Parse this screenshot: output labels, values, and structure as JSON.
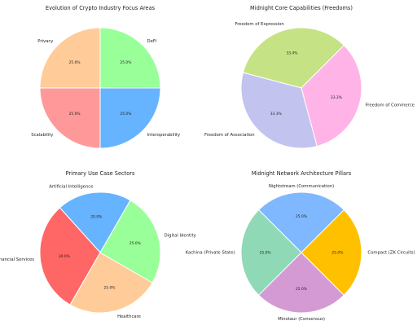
{
  "chart_data": [
    {
      "type": "pie",
      "title": "Evolution of Crypto Industry Focus Areas",
      "start_angle_deg": 90,
      "slices": [
        {
          "label": "Privacy",
          "value": 25.0,
          "pct_label": "25.0%",
          "color": "#ffcc99"
        },
        {
          "label": "Scalability",
          "value": 25.0,
          "pct_label": "25.0%",
          "color": "#ff9999"
        },
        {
          "label": "Interoperability",
          "value": 25.0,
          "pct_label": "25.0%",
          "color": "#66b3ff"
        },
        {
          "label": "DeFi",
          "value": 25.0,
          "pct_label": "25.0%",
          "color": "#99ff99"
        }
      ]
    },
    {
      "type": "pie",
      "title": "Midnight Core Capabilities (Freedoms)",
      "start_angle_deg": 45,
      "slices": [
        {
          "label": "Freedom of Expression",
          "value": 33.4,
          "pct_label": "33.4%",
          "color": "#c5e384"
        },
        {
          "label": "Freedom of Association",
          "value": 33.3,
          "pct_label": "33.3%",
          "color": "#c3c3f0"
        },
        {
          "label": "Freedom of Commerce",
          "value": 33.3,
          "pct_label": "33.3%",
          "color": "#ffb3e6"
        }
      ]
    },
    {
      "type": "pie",
      "title": "Primary Use Case Sectors",
      "start_angle_deg": 60,
      "slices": [
        {
          "label": "Artificial Intelligence",
          "value": 20.0,
          "pct_label": "20.0%",
          "color": "#66b3ff"
        },
        {
          "label": "Financial Services",
          "value": 30.0,
          "pct_label": "30.0%",
          "color": "#ff6666"
        },
        {
          "label": "Healthcare",
          "value": 25.0,
          "pct_label": "25.0%",
          "color": "#ffcc99"
        },
        {
          "label": "Digital Identity",
          "value": 25.0,
          "pct_label": "25.0%",
          "color": "#99ff99"
        }
      ]
    },
    {
      "type": "pie",
      "title": "Midnight Network Architecture Pillars",
      "start_angle_deg": 45,
      "slices": [
        {
          "label": "Nightstream (Communication)",
          "value": 25.0,
          "pct_label": "25.0%",
          "color": "#7fb8ff"
        },
        {
          "label": "Kachina (Private State)",
          "value": 25.0,
          "pct_label": "25.0%",
          "color": "#8fd9b6"
        },
        {
          "label": "Minotaur (Consensus)",
          "value": 25.0,
          "pct_label": "25.0%",
          "color": "#d39ad3"
        },
        {
          "label": "Compact (ZK Circuits)",
          "value": 25.0,
          "pct_label": "25.0%",
          "color": "#ffc000"
        }
      ]
    }
  ]
}
